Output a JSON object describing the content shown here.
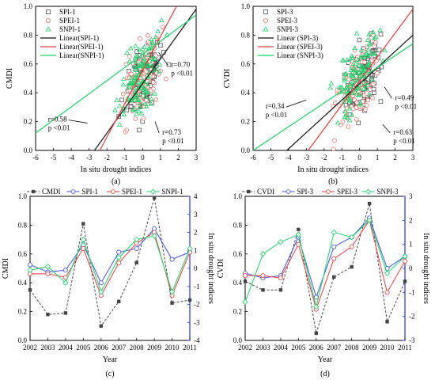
{
  "chart_data": [
    {
      "type": "scatter",
      "panel_label": "(a)",
      "xlabel": "In situ drought indices",
      "ylabel": "CMDI",
      "xlim": [
        -6,
        3
      ],
      "ylim": [
        0,
        1.0
      ],
      "xticks": [
        "-6",
        "-5",
        "-4",
        "-3",
        "-2",
        "-1",
        "0",
        "1",
        "2",
        "3"
      ],
      "yticks": [
        "0.0",
        "0.2",
        "0.4",
        "0.6",
        "0.8",
        "1.0"
      ],
      "legend_position": "top-left",
      "legend": [
        "SPI-1",
        "SPEI-1",
        "SNPI-1",
        "Linear(SPI-1)",
        "Linear(SPEI-1)",
        "Linear(SNPI-1)"
      ],
      "series": [
        {
          "name": "SPI-1",
          "marker": "square",
          "color": "#555555",
          "n": 120,
          "center": [
            0.1,
            0.5
          ],
          "spread": [
            1.0,
            0.23
          ],
          "seed": 11
        },
        {
          "name": "SPEI-1",
          "marker": "circle",
          "color": "#e8706a",
          "n": 120,
          "center": [
            0.0,
            0.5
          ],
          "spread": [
            1.0,
            0.23
          ],
          "seed": 23
        },
        {
          "name": "SNPI-1",
          "marker": "triangle",
          "color": "#1fd16a",
          "n": 120,
          "center": [
            -0.1,
            0.5
          ],
          "spread": [
            1.1,
            0.25
          ],
          "seed": 37
        }
      ],
      "fits": [
        {
          "name": "Linear(SPI-1)",
          "color": "#111111",
          "x": [
            -2.7,
            3.0
          ],
          "y": [
            0.0,
            0.98
          ]
        },
        {
          "name": "Linear(SPEI-1)",
          "color": "#e03c3c",
          "x": [
            -2.4,
            1.9
          ],
          "y": [
            0.0,
            1.0
          ]
        },
        {
          "name": "Linear(SNPI-1)",
          "color": "#1fd16a",
          "x": [
            -6.0,
            3.0
          ],
          "y": [
            0.12,
            0.94
          ]
        }
      ],
      "annotations": [
        {
          "lines": [
            "r=0.70",
            "p <0.01"
          ],
          "x": 1.6,
          "y": 0.58,
          "arrow_to": [
            0.9,
            0.68
          ]
        },
        {
          "lines": [
            "r=0.58",
            "p <0.01"
          ],
          "x": -5.3,
          "y": 0.2,
          "arrow_to": [
            -3.1,
            0.19
          ]
        },
        {
          "lines": [
            "r=0.73",
            "p <0.01"
          ],
          "x": 1.1,
          "y": 0.11,
          "arrow_to": [
            0.7,
            0.2
          ]
        }
      ]
    },
    {
      "type": "scatter",
      "panel_label": "(b)",
      "xlabel": "In situ drought indices",
      "ylabel": "CVDI",
      "xlim": [
        -6,
        3
      ],
      "ylim": [
        0,
        1.0
      ],
      "xticks": [
        "-6",
        "-5",
        "-4",
        "-3",
        "-2",
        "-1",
        "0",
        "1",
        "2",
        "3"
      ],
      "yticks": [
        "0.0",
        "0.2",
        "0.4",
        "0.6",
        "0.8",
        "1.0"
      ],
      "legend_position": "top-left",
      "legend": [
        "SPI-3",
        "SPEI-3",
        "SNPI-3",
        "Linear (SPI-3)",
        "Linear (SPEI-3)",
        "Linear (SNPI-3)"
      ],
      "series": [
        {
          "name": "SPI-3",
          "marker": "square",
          "color": "#555555",
          "n": 100,
          "center": [
            0.2,
            0.5
          ],
          "spread": [
            1.1,
            0.23
          ],
          "seed": 5
        },
        {
          "name": "SPEI-3",
          "marker": "circle",
          "color": "#e8706a",
          "n": 100,
          "center": [
            0.0,
            0.45
          ],
          "spread": [
            1.1,
            0.23
          ],
          "seed": 17
        },
        {
          "name": "SNPI-3",
          "marker": "triangle",
          "color": "#1fd16a",
          "n": 110,
          "center": [
            -0.1,
            0.5
          ],
          "spread": [
            1.2,
            0.25
          ],
          "seed": 29
        }
      ],
      "fits": [
        {
          "name": "Linear (SPI-3)",
          "color": "#111111",
          "x": [
            -4.1,
            3.0
          ],
          "y": [
            0.0,
            0.8
          ]
        },
        {
          "name": "Linear (SPEI-3)",
          "color": "#e03c3c",
          "x": [
            -2.9,
            3.0
          ],
          "y": [
            0.0,
            0.98
          ]
        },
        {
          "name": "Linear (SNPI-3)",
          "color": "#1fd16a",
          "x": [
            -6.0,
            3.0
          ],
          "y": [
            0.0,
            0.74
          ]
        }
      ],
      "annotations": [
        {
          "lines": [
            "r=0.49",
            "p <0.01"
          ],
          "x": 2.0,
          "y": 0.35,
          "arrow_to": [
            1.4,
            0.44
          ]
        },
        {
          "lines": [
            "r=0.34",
            "p <0.01"
          ],
          "x": -5.3,
          "y": 0.29,
          "arrow_to": [
            -3.0,
            0.35
          ]
        },
        {
          "lines": [
            "r=0.63",
            "p <0.01"
          ],
          "x": 1.9,
          "y": 0.11,
          "arrow_to": [
            1.3,
            0.18
          ]
        }
      ]
    },
    {
      "type": "line",
      "panel_label": "(c)",
      "xlabel": "Year",
      "ylabel": "CMDI",
      "y2label": "In situ drought indices",
      "x": [
        2002,
        2003,
        2004,
        2005,
        2006,
        2007,
        2008,
        2009,
        2010,
        2011
      ],
      "ylim": [
        0,
        1.0
      ],
      "y2lim": [
        -4,
        4
      ],
      "yticks": [
        "0.0",
        "0.2",
        "0.4",
        "0.6",
        "0.8",
        "1.0"
      ],
      "y2ticks": [
        "-4",
        "-3",
        "-2",
        "-1",
        "0",
        "1",
        "2",
        "3",
        "4"
      ],
      "legend_position": "top",
      "series": [
        {
          "name": "CMDI",
          "axis": "left",
          "color": "#444444",
          "dash": true,
          "marker": "square",
          "values": [
            0.35,
            0.18,
            0.19,
            0.81,
            0.1,
            0.27,
            0.54,
            0.99,
            0.26,
            0.28
          ]
        },
        {
          "name": "SPI-1",
          "axis": "right",
          "color": "#3b4fe0",
          "marker": "circle-open",
          "values": [
            0.2,
            -0.2,
            -0.1,
            1.3,
            -0.8,
            0.9,
            1.1,
            2.2,
            0.5,
            0.9
          ]
        },
        {
          "name": "SPEI-1",
          "axis": "right",
          "color": "#e03c3c",
          "marker": "circle-open",
          "values": [
            -0.3,
            -0.3,
            -0.5,
            1.1,
            -1.5,
            0.3,
            1.4,
            2.0,
            -1.5,
            0.9
          ]
        },
        {
          "name": "SNPI-1",
          "axis": "right",
          "color": "#1fd16a",
          "marker": "diamond-open",
          "values": [
            -0.1,
            0.1,
            -0.8,
            1.6,
            -1.3,
            0.6,
            1.6,
            1.8,
            -1.3,
            1.1
          ]
        }
      ]
    },
    {
      "type": "line",
      "panel_label": "(d)",
      "xlabel": "Year",
      "ylabel": "CVDI",
      "y2label": "In situ drought indices",
      "x": [
        2002,
        2003,
        2004,
        2005,
        2006,
        2007,
        2008,
        2009,
        2010,
        2011
      ],
      "ylim": [
        0,
        1.0
      ],
      "y2lim": [
        -3,
        3
      ],
      "yticks": [
        "0.0",
        "0.2",
        "0.4",
        "0.6",
        "0.8",
        "1.0"
      ],
      "y2ticks": [
        "-3",
        "-2",
        "-1",
        "0",
        "1",
        "2",
        "3"
      ],
      "legend_position": "top",
      "series": [
        {
          "name": "CVDI",
          "axis": "left",
          "color": "#444444",
          "dash": true,
          "marker": "square",
          "values": [
            0.41,
            0.35,
            0.35,
            0.77,
            0.05,
            0.44,
            0.51,
            0.95,
            0.13,
            0.41
          ]
        },
        {
          "name": "SPI-3",
          "axis": "right",
          "color": "#3b4fe0",
          "marker": "circle-open",
          "values": [
            -0.2,
            -0.4,
            -0.3,
            1.3,
            -1.2,
            0.9,
            1.3,
            2.1,
            0.0,
            0.5
          ]
        },
        {
          "name": "SPEI-3",
          "axis": "right",
          "color": "#e03c3c",
          "marker": "circle-open",
          "values": [
            -0.3,
            -0.3,
            -0.4,
            1.0,
            -1.7,
            0.4,
            0.9,
            2.0,
            -1.0,
            0.3
          ]
        },
        {
          "name": "SNPI-3",
          "axis": "right",
          "color": "#1fd16a",
          "marker": "diamond-open",
          "values": [
            -1.4,
            0.6,
            1.1,
            1.4,
            -1.6,
            1.5,
            1.3,
            2.0,
            -0.2,
            0.5
          ]
        }
      ]
    }
  ]
}
